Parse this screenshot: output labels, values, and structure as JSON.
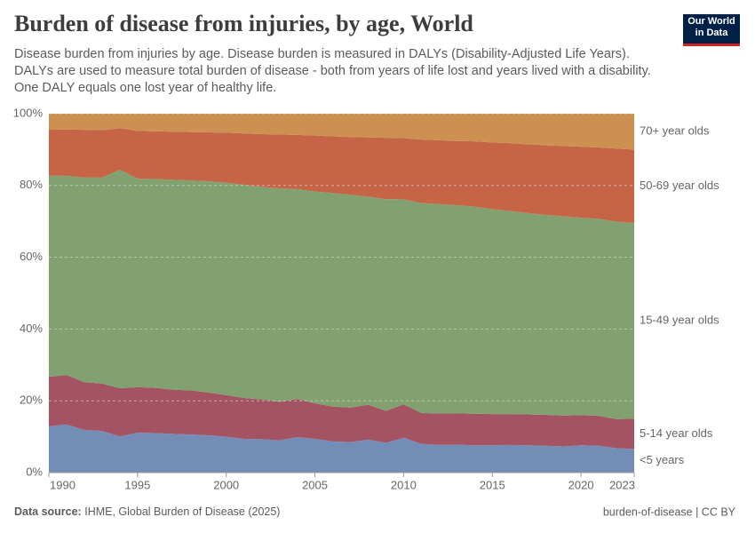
{
  "header": {
    "title": "Burden of disease from injuries, by age, World",
    "subtitle": "Disease burden from injuries by age. Disease burden is measured in DALYs (Disability-Adjusted Life Years). DALYs are used to measure total burden of disease - both from years of life lost and years lived with a disability. One DALY equals one lost year of healthy life.",
    "logo": [
      "Our World",
      "in Data"
    ]
  },
  "footer": {
    "source_label": "Data source:",
    "source": "IHME, Global Burden of Disease (2025)",
    "right": "burden-of-disease | CC BY"
  },
  "chart_data": {
    "type": "stacked_area",
    "x": [
      1990,
      1991,
      1992,
      1993,
      1994,
      1995,
      1996,
      1997,
      1998,
      1999,
      2000,
      2001,
      2002,
      2003,
      2004,
      2005,
      2006,
      2007,
      2008,
      2009,
      2010,
      2011,
      2012,
      2013,
      2014,
      2015,
      2016,
      2017,
      2018,
      2019,
      2020,
      2021,
      2022,
      2023
    ],
    "xlim": [
      1990,
      2023
    ],
    "xticks": [
      1990,
      1995,
      2000,
      2005,
      2010,
      2015,
      2020,
      2023
    ],
    "ylim": [
      0,
      100
    ],
    "yticks": [
      {
        "value": 0,
        "label": "0%"
      },
      {
        "value": 20,
        "label": "20%"
      },
      {
        "value": 40,
        "label": "40%"
      },
      {
        "value": 60,
        "label": "60%"
      },
      {
        "value": 80,
        "label": "80%"
      },
      {
        "value": 100,
        "label": "100%"
      }
    ],
    "grid": true,
    "legend": "right",
    "series": [
      {
        "name": "<5 years",
        "color": "#6d87b3",
        "label_color": "#4c6a9c",
        "values": [
          12.9,
          13.4,
          11.9,
          11.6,
          10.1,
          11.1,
          11.0,
          10.8,
          10.6,
          10.4,
          10.0,
          9.4,
          9.3,
          9.0,
          9.9,
          9.4,
          8.7,
          8.5,
          9.2,
          8.3,
          9.7,
          8.0,
          7.7,
          7.8,
          7.6,
          7.6,
          7.7,
          7.6,
          7.5,
          7.3,
          7.6,
          7.5,
          6.8,
          6.6
        ]
      },
      {
        "name": "5-14 year olds",
        "color": "#9e4a5a",
        "label_color": "#883039",
        "values": [
          13.8,
          13.8,
          13.3,
          13.2,
          13.4,
          12.7,
          12.6,
          12.3,
          12.3,
          11.9,
          11.6,
          11.4,
          11.1,
          10.7,
          10.6,
          9.9,
          9.7,
          9.6,
          9.7,
          8.9,
          9.3,
          8.6,
          8.8,
          8.7,
          8.8,
          8.7,
          8.6,
          8.6,
          8.6,
          8.6,
          8.4,
          8.3,
          8.1,
          8.4
        ]
      },
      {
        "name": "15-49 year olds",
        "color": "#7a9c68",
        "label_color": "#578145",
        "values": [
          56.0,
          55.5,
          57.0,
          57.4,
          60.9,
          58.1,
          58.2,
          58.5,
          58.5,
          58.9,
          59.2,
          59.4,
          59.2,
          59.5,
          58.5,
          59.0,
          59.5,
          59.3,
          58.0,
          59.0,
          57.1,
          58.5,
          58.3,
          58.0,
          57.7,
          57.1,
          56.6,
          56.1,
          55.7,
          55.5,
          55.0,
          54.9,
          55.0,
          54.6
        ]
      },
      {
        "name": "50-69 year olds",
        "color": "#c25d3c",
        "label_color": "#b6401f",
        "values": [
          12.8,
          12.9,
          13.3,
          13.2,
          11.6,
          13.3,
          13.3,
          13.4,
          13.5,
          13.6,
          13.9,
          14.3,
          14.7,
          15.0,
          15.1,
          15.6,
          15.8,
          16.1,
          16.5,
          17.1,
          17.1,
          17.7,
          17.8,
          17.9,
          18.2,
          18.6,
          18.9,
          19.2,
          19.4,
          19.6,
          19.8,
          19.9,
          20.4,
          20.4
        ]
      },
      {
        "name": "70+ year olds",
        "color": "#c98b47",
        "label_color": "#b86d26",
        "values": [
          4.5,
          4.4,
          4.5,
          4.6,
          4.0,
          4.8,
          4.9,
          5.0,
          5.1,
          5.2,
          5.3,
          5.5,
          5.7,
          5.8,
          5.9,
          6.1,
          6.3,
          6.5,
          6.6,
          6.7,
          6.8,
          7.2,
          7.4,
          7.6,
          7.7,
          8.0,
          8.2,
          8.5,
          8.8,
          9.0,
          9.2,
          9.4,
          9.7,
          10.0
        ]
      }
    ]
  }
}
